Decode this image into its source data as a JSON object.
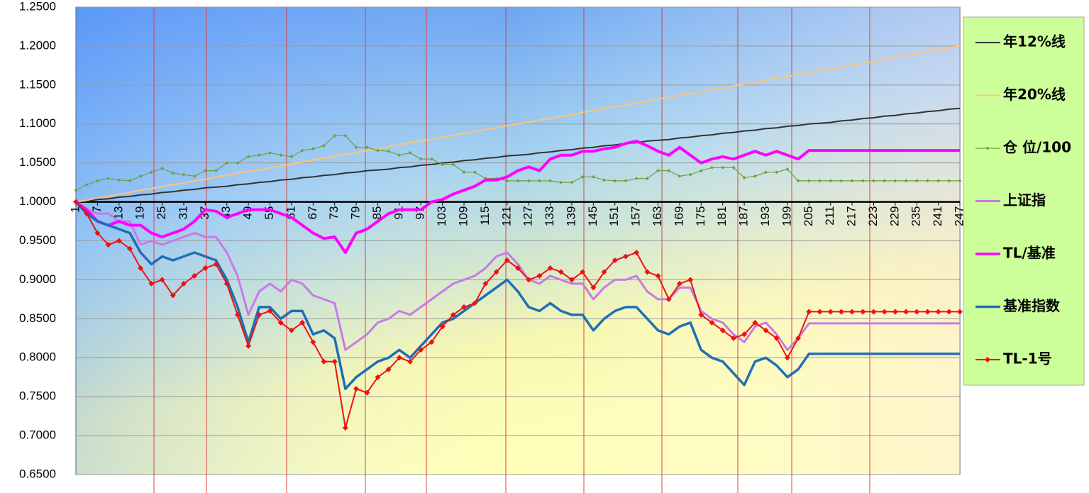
{
  "chart_data": {
    "type": "line",
    "xlim": [
      1,
      247
    ],
    "xticks": [
      1,
      7,
      13,
      19,
      25,
      31,
      37,
      43,
      49,
      55,
      61,
      67,
      73,
      79,
      85,
      91,
      97,
      103,
      109,
      115,
      121,
      127,
      133,
      139,
      145,
      151,
      157,
      163,
      169,
      175,
      181,
      187,
      193,
      199,
      205,
      211,
      217,
      223,
      229,
      235,
      241,
      247
    ],
    "ylim": [
      0.65,
      1.25
    ],
    "yticks": [
      {
        "value": 0.65,
        "label": "0.6500"
      },
      {
        "value": 0.7,
        "label": "0.7000"
      },
      {
        "value": 0.75,
        "label": "0.7500"
      },
      {
        "value": 0.8,
        "label": "0.8000"
      },
      {
        "value": 0.85,
        "label": "0.8500"
      },
      {
        "value": 0.9,
        "label": "0.9000"
      },
      {
        "value": 0.95,
        "label": "0.9500"
      },
      {
        "value": 1.0,
        "label": "1.0000"
      },
      {
        "value": 1.05,
        "label": "1.0500"
      },
      {
        "value": 1.1,
        "label": "1.1000"
      },
      {
        "value": 1.15,
        "label": "1.1500"
      },
      {
        "value": 1.2,
        "label": "1.2000"
      },
      {
        "value": 1.25,
        "label": "1.2500"
      }
    ],
    "grid": true,
    "legend": "right",
    "x": [
      1,
      4,
      7,
      10,
      13,
      16,
      19,
      22,
      25,
      28,
      31,
      34,
      37,
      40,
      43,
      46,
      49,
      52,
      55,
      58,
      61,
      64,
      67,
      70,
      73,
      76,
      79,
      82,
      85,
      88,
      91,
      94,
      97,
      100,
      103,
      106,
      109,
      112,
      115,
      118,
      121,
      124,
      127,
      130,
      133,
      136,
      139,
      142,
      145,
      148,
      151,
      154,
      157,
      160,
      163,
      166,
      169,
      172,
      175,
      178,
      181,
      184,
      187,
      190,
      193,
      196,
      199,
      202,
      205,
      208,
      211,
      214,
      217,
      220,
      223,
      226,
      229,
      232,
      235,
      238,
      241,
      244,
      247
    ],
    "series": [
      {
        "name": "年12%线",
        "color": "#333333",
        "values": [
          1.0,
          1.001,
          1.003,
          1.004,
          1.006,
          1.007,
          1.009,
          1.01,
          1.012,
          1.013,
          1.015,
          1.016,
          1.018,
          1.019,
          1.02,
          1.022,
          1.023,
          1.025,
          1.026,
          1.028,
          1.029,
          1.031,
          1.032,
          1.034,
          1.035,
          1.037,
          1.038,
          1.04,
          1.041,
          1.042,
          1.044,
          1.045,
          1.047,
          1.048,
          1.05,
          1.051,
          1.053,
          1.054,
          1.056,
          1.057,
          1.059,
          1.06,
          1.061,
          1.063,
          1.064,
          1.066,
          1.067,
          1.069,
          1.07,
          1.072,
          1.073,
          1.075,
          1.076,
          1.078,
          1.079,
          1.08,
          1.082,
          1.083,
          1.085,
          1.086,
          1.088,
          1.089,
          1.091,
          1.092,
          1.094,
          1.095,
          1.097,
          1.098,
          1.1,
          1.101,
          1.102,
          1.104,
          1.105,
          1.107,
          1.108,
          1.11,
          1.111,
          1.113,
          1.114,
          1.116,
          1.117,
          1.119,
          1.12
        ]
      },
      {
        "name": "年20%线",
        "color": "#ffc37a",
        "values": [
          1.0,
          1.002,
          1.005,
          1.007,
          1.01,
          1.012,
          1.015,
          1.017,
          1.02,
          1.022,
          1.024,
          1.027,
          1.029,
          1.032,
          1.034,
          1.037,
          1.039,
          1.041,
          1.044,
          1.046,
          1.049,
          1.051,
          1.054,
          1.056,
          1.059,
          1.061,
          1.063,
          1.066,
          1.068,
          1.071,
          1.073,
          1.076,
          1.078,
          1.08,
          1.083,
          1.085,
          1.088,
          1.09,
          1.093,
          1.095,
          1.098,
          1.1,
          1.102,
          1.105,
          1.107,
          1.11,
          1.112,
          1.115,
          1.117,
          1.12,
          1.122,
          1.124,
          1.127,
          1.129,
          1.132,
          1.134,
          1.137,
          1.139,
          1.141,
          1.144,
          1.146,
          1.149,
          1.151,
          1.154,
          1.156,
          1.159,
          1.161,
          1.163,
          1.166,
          1.168,
          1.171,
          1.173,
          1.176,
          1.178,
          1.18,
          1.183,
          1.185,
          1.188,
          1.19,
          1.193,
          1.195,
          1.198,
          1.2
        ]
      },
      {
        "name": "仓 位/100",
        "color": "#6fa040",
        "marker": "diamond",
        "values": [
          1.015,
          1.022,
          1.027,
          1.03,
          1.028,
          1.027,
          1.033,
          1.038,
          1.043,
          1.037,
          1.035,
          1.033,
          1.04,
          1.04,
          1.05,
          1.05,
          1.058,
          1.06,
          1.063,
          1.06,
          1.058,
          1.066,
          1.068,
          1.072,
          1.085,
          1.085,
          1.07,
          1.07,
          1.066,
          1.065,
          1.06,
          1.063,
          1.055,
          1.055,
          1.048,
          1.048,
          1.038,
          1.038,
          1.03,
          1.03,
          1.027,
          1.027,
          1.027,
          1.027,
          1.027,
          1.025,
          1.025,
          1.032,
          1.032,
          1.028,
          1.027,
          1.027,
          1.03,
          1.03,
          1.04,
          1.04,
          1.033,
          1.035,
          1.04,
          1.044,
          1.044,
          1.044,
          1.031,
          1.033,
          1.038,
          1.038,
          1.042,
          1.027,
          1.027,
          1.027,
          1.027,
          1.027,
          1.027,
          1.027,
          1.027,
          1.027,
          1.027,
          1.027,
          1.027,
          1.027,
          1.027,
          1.027,
          1.027
        ]
      },
      {
        "name": "上证指",
        "color": "#c87ae8",
        "values": [
          1.0,
          0.99,
          0.985,
          0.985,
          0.975,
          0.975,
          0.945,
          0.95,
          0.945,
          0.95,
          0.955,
          0.96,
          0.955,
          0.955,
          0.935,
          0.905,
          0.855,
          0.885,
          0.895,
          0.885,
          0.9,
          0.895,
          0.88,
          0.875,
          0.87,
          0.81,
          0.82,
          0.83,
          0.845,
          0.85,
          0.86,
          0.855,
          0.865,
          0.875,
          0.885,
          0.895,
          0.9,
          0.905,
          0.915,
          0.93,
          0.935,
          0.92,
          0.9,
          0.895,
          0.905,
          0.9,
          0.895,
          0.895,
          0.875,
          0.89,
          0.9,
          0.9,
          0.905,
          0.885,
          0.875,
          0.875,
          0.89,
          0.89,
          0.86,
          0.85,
          0.845,
          0.83,
          0.82,
          0.84,
          0.845,
          0.83,
          0.81,
          0.825,
          0.844,
          0.844,
          0.844,
          0.844,
          0.844,
          0.844,
          0.844,
          0.844,
          0.844,
          0.844,
          0.844,
          0.844,
          0.844,
          0.844,
          0.844
        ]
      },
      {
        "name": "TL/基准",
        "color": "#ff00ff",
        "values": [
          1.0,
          0.99,
          0.975,
          0.97,
          0.975,
          0.97,
          0.97,
          0.96,
          0.955,
          0.96,
          0.965,
          0.975,
          0.99,
          0.988,
          0.98,
          0.985,
          0.99,
          0.99,
          0.99,
          0.985,
          0.98,
          0.97,
          0.96,
          0.953,
          0.955,
          0.935,
          0.96,
          0.965,
          0.975,
          0.985,
          0.99,
          0.99,
          0.99,
          1.0,
          1.003,
          1.01,
          1.015,
          1.02,
          1.028,
          1.028,
          1.032,
          1.04,
          1.045,
          1.04,
          1.055,
          1.06,
          1.06,
          1.065,
          1.065,
          1.068,
          1.07,
          1.075,
          1.078,
          1.072,
          1.065,
          1.06,
          1.07,
          1.06,
          1.05,
          1.055,
          1.058,
          1.055,
          1.06,
          1.065,
          1.06,
          1.065,
          1.06,
          1.055,
          1.066,
          1.066,
          1.066,
          1.066,
          1.066,
          1.066,
          1.066,
          1.066,
          1.066,
          1.066,
          1.066,
          1.066,
          1.066,
          1.066,
          1.066
        ]
      },
      {
        "name": "基准指数",
        "color": "#1f6fb5",
        "values": [
          1.0,
          0.985,
          0.975,
          0.97,
          0.965,
          0.96,
          0.935,
          0.92,
          0.93,
          0.925,
          0.93,
          0.935,
          0.93,
          0.925,
          0.9,
          0.865,
          0.82,
          0.865,
          0.865,
          0.85,
          0.86,
          0.86,
          0.83,
          0.835,
          0.825,
          0.76,
          0.775,
          0.785,
          0.795,
          0.8,
          0.81,
          0.8,
          0.815,
          0.83,
          0.845,
          0.85,
          0.86,
          0.87,
          0.88,
          0.89,
          0.9,
          0.885,
          0.865,
          0.86,
          0.87,
          0.86,
          0.855,
          0.855,
          0.835,
          0.85,
          0.86,
          0.865,
          0.865,
          0.85,
          0.835,
          0.83,
          0.84,
          0.845,
          0.81,
          0.8,
          0.795,
          0.78,
          0.765,
          0.795,
          0.8,
          0.79,
          0.775,
          0.785,
          0.805,
          0.805,
          0.805,
          0.805,
          0.805,
          0.805,
          0.805,
          0.805,
          0.805,
          0.805,
          0.805,
          0.805,
          0.805,
          0.805,
          0.805
        ]
      },
      {
        "name": "TL-1号",
        "color": "#ee1111",
        "marker": "diamond",
        "values": [
          1.0,
          0.985,
          0.96,
          0.945,
          0.95,
          0.94,
          0.915,
          0.895,
          0.9,
          0.88,
          0.895,
          0.905,
          0.915,
          0.92,
          0.895,
          0.855,
          0.815,
          0.855,
          0.86,
          0.845,
          0.835,
          0.845,
          0.82,
          0.795,
          0.795,
          0.71,
          0.76,
          0.755,
          0.775,
          0.785,
          0.8,
          0.795,
          0.81,
          0.82,
          0.84,
          0.855,
          0.865,
          0.87,
          0.895,
          0.91,
          0.925,
          0.915,
          0.9,
          0.905,
          0.915,
          0.91,
          0.9,
          0.91,
          0.89,
          0.91,
          0.925,
          0.93,
          0.935,
          0.91,
          0.905,
          0.875,
          0.895,
          0.9,
          0.855,
          0.845,
          0.835,
          0.825,
          0.83,
          0.845,
          0.835,
          0.825,
          0.8,
          0.825,
          0.859,
          0.859,
          0.859,
          0.859,
          0.859,
          0.859,
          0.859,
          0.859,
          0.859,
          0.859,
          0.859,
          0.859,
          0.859,
          0.859,
          0.859
        ]
      }
    ]
  }
}
